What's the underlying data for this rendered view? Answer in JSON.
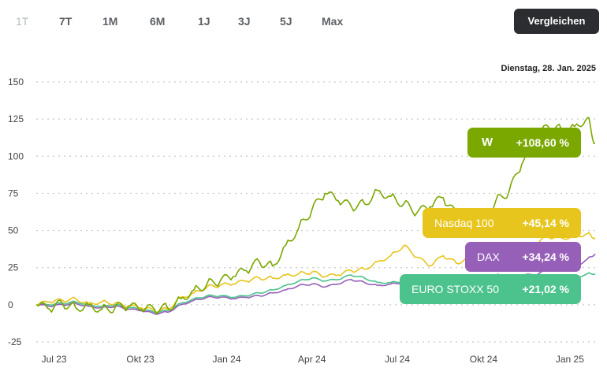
{
  "range_tabs": [
    "1T",
    "7T",
    "1M",
    "6M",
    "1J",
    "3J",
    "5J",
    "Max"
  ],
  "active_range": "1T",
  "compare_button": "Vergleichen",
  "date_label": "Dienstag, 28. Jan. 2025",
  "colors": {
    "main": "#7aa700",
    "nasdaq": "#e7c51c",
    "dax": "#9660b8",
    "stoxx": "#4cc28c",
    "grid": "#c8c8c8",
    "active_tab": "#b7bcc1"
  },
  "legend": [
    {
      "key": "main",
      "name": "W",
      "icon": "stock-logo-icon",
      "value": "+108,60 %"
    },
    {
      "key": "nasdaq",
      "name": "Nasdaq 100",
      "value": "+45,14 %"
    },
    {
      "key": "dax",
      "name": "DAX",
      "value": "+34,24 %"
    },
    {
      "key": "stoxx",
      "name": "EURO STOXX 50",
      "value": "+21,02 %"
    }
  ],
  "chart_data": {
    "type": "line",
    "x_tick_labels": [
      "Jul 23",
      "Okt 23",
      "Jan 24",
      "Apr 24",
      "Jul 24",
      "Okt 24",
      "Jan 25"
    ],
    "y_ticks": [
      150,
      125,
      100,
      75,
      50,
      25,
      0,
      -25
    ],
    "ylim": [
      -25,
      150
    ],
    "xlim": [
      "2023-06-12",
      "2025-01-28"
    ],
    "grid": true,
    "series": [
      {
        "key": "main",
        "name": "W",
        "values": [
          [
            "2023-06-12",
            0
          ],
          [
            "2023-06-26",
            -3
          ],
          [
            "2023-07-10",
            1
          ],
          [
            "2023-07-24",
            -2
          ],
          [
            "2023-08-07",
            0
          ],
          [
            "2023-08-21",
            -3
          ],
          [
            "2023-09-04",
            -2
          ],
          [
            "2023-09-18",
            -1
          ],
          [
            "2023-10-02",
            -3
          ],
          [
            "2023-10-16",
            -3
          ],
          [
            "2023-10-30",
            -2
          ],
          [
            "2023-11-13",
            4
          ],
          [
            "2023-11-27",
            10
          ],
          [
            "2023-12-11",
            14
          ],
          [
            "2023-12-25",
            16
          ],
          [
            "2024-01-08",
            19
          ],
          [
            "2024-01-22",
            23
          ],
          [
            "2024-02-05",
            29
          ],
          [
            "2024-02-19",
            26
          ],
          [
            "2024-03-04",
            40
          ],
          [
            "2024-03-18",
            52
          ],
          [
            "2024-04-01",
            64
          ],
          [
            "2024-04-15",
            75
          ],
          [
            "2024-04-29",
            70
          ],
          [
            "2024-05-13",
            66
          ],
          [
            "2024-05-27",
            68
          ],
          [
            "2024-06-10",
            77
          ],
          [
            "2024-06-24",
            73
          ],
          [
            "2024-07-08",
            68
          ],
          [
            "2024-07-22",
            62
          ],
          [
            "2024-08-05",
            66
          ],
          [
            "2024-08-19",
            72
          ],
          [
            "2024-09-02",
            60
          ],
          [
            "2024-09-16",
            55
          ],
          [
            "2024-09-30",
            53
          ],
          [
            "2024-10-14",
            70
          ],
          [
            "2024-10-28",
            76
          ],
          [
            "2024-11-11",
            95
          ],
          [
            "2024-11-25",
            112
          ],
          [
            "2024-12-09",
            120
          ],
          [
            "2024-12-23",
            118
          ],
          [
            "2025-01-06",
            120
          ],
          [
            "2025-01-20",
            126
          ],
          [
            "2025-01-28",
            108.6
          ]
        ]
      },
      {
        "key": "nasdaq",
        "name": "Nasdaq 100",
        "values": [
          [
            "2023-06-12",
            0
          ],
          [
            "2023-06-26",
            2
          ],
          [
            "2023-07-10",
            3
          ],
          [
            "2023-07-24",
            4
          ],
          [
            "2023-08-07",
            1
          ],
          [
            "2023-08-21",
            2
          ],
          [
            "2023-09-04",
            1
          ],
          [
            "2023-09-18",
            -1
          ],
          [
            "2023-10-02",
            -2
          ],
          [
            "2023-10-16",
            -4
          ],
          [
            "2023-10-30",
            -3
          ],
          [
            "2023-11-13",
            5
          ],
          [
            "2023-11-27",
            8
          ],
          [
            "2023-12-11",
            12
          ],
          [
            "2023-12-25",
            13
          ],
          [
            "2024-01-08",
            14
          ],
          [
            "2024-01-22",
            16
          ],
          [
            "2024-02-05",
            18
          ],
          [
            "2024-02-19",
            18
          ],
          [
            "2024-03-04",
            20
          ],
          [
            "2024-03-18",
            21
          ],
          [
            "2024-04-01",
            22
          ],
          [
            "2024-04-15",
            19
          ],
          [
            "2024-04-29",
            20
          ],
          [
            "2024-05-13",
            23
          ],
          [
            "2024-05-27",
            24
          ],
          [
            "2024-06-10",
            29
          ],
          [
            "2024-06-24",
            33
          ],
          [
            "2024-07-08",
            40
          ],
          [
            "2024-07-22",
            32
          ],
          [
            "2024-08-05",
            26
          ],
          [
            "2024-08-19",
            33
          ],
          [
            "2024-09-02",
            28
          ],
          [
            "2024-09-16",
            32
          ],
          [
            "2024-09-30",
            34
          ],
          [
            "2024-10-14",
            36
          ],
          [
            "2024-10-28",
            34
          ],
          [
            "2024-11-11",
            40
          ],
          [
            "2024-11-25",
            41
          ],
          [
            "2024-12-09",
            46
          ],
          [
            "2024-12-23",
            45
          ],
          [
            "2025-01-06",
            46
          ],
          [
            "2025-01-20",
            48
          ],
          [
            "2025-01-28",
            45.14
          ]
        ]
      },
      {
        "key": "dax",
        "name": "DAX",
        "values": [
          [
            "2023-06-12",
            0
          ],
          [
            "2023-06-26",
            -1
          ],
          [
            "2023-07-10",
            0
          ],
          [
            "2023-07-24",
            1
          ],
          [
            "2023-08-07",
            -1
          ],
          [
            "2023-08-21",
            -2
          ],
          [
            "2023-09-04",
            -1
          ],
          [
            "2023-09-18",
            -3
          ],
          [
            "2023-10-02",
            -4
          ],
          [
            "2023-10-16",
            -6
          ],
          [
            "2023-10-30",
            -5
          ],
          [
            "2023-11-13",
            0
          ],
          [
            "2023-11-27",
            3
          ],
          [
            "2023-12-11",
            5
          ],
          [
            "2023-12-25",
            5
          ],
          [
            "2024-01-08",
            4
          ],
          [
            "2024-01-22",
            5
          ],
          [
            "2024-02-05",
            6
          ],
          [
            "2024-02-19",
            8
          ],
          [
            "2024-03-04",
            10
          ],
          [
            "2024-03-18",
            13
          ],
          [
            "2024-04-01",
            14
          ],
          [
            "2024-04-15",
            12
          ],
          [
            "2024-04-29",
            14
          ],
          [
            "2024-05-13",
            17
          ],
          [
            "2024-05-27",
            15
          ],
          [
            "2024-06-10",
            13
          ],
          [
            "2024-06-24",
            14
          ],
          [
            "2024-07-08",
            15
          ],
          [
            "2024-07-22",
            14
          ],
          [
            "2024-08-05",
            10
          ],
          [
            "2024-08-19",
            15
          ],
          [
            "2024-09-02",
            16
          ],
          [
            "2024-09-16",
            17
          ],
          [
            "2024-09-30",
            19
          ],
          [
            "2024-10-14",
            20
          ],
          [
            "2024-10-28",
            19
          ],
          [
            "2024-11-11",
            20
          ],
          [
            "2024-11-25",
            20
          ],
          [
            "2024-12-09",
            24
          ],
          [
            "2024-12-23",
            24
          ],
          [
            "2025-01-06",
            25
          ],
          [
            "2025-01-20",
            31
          ],
          [
            "2025-01-28",
            34.24
          ]
        ]
      },
      {
        "key": "stoxx",
        "name": "EURO STOXX 50",
        "values": [
          [
            "2023-06-12",
            0
          ],
          [
            "2023-06-26",
            0
          ],
          [
            "2023-07-10",
            1
          ],
          [
            "2023-07-24",
            2
          ],
          [
            "2023-08-07",
            0
          ],
          [
            "2023-08-21",
            -1
          ],
          [
            "2023-09-04",
            0
          ],
          [
            "2023-09-18",
            -2
          ],
          [
            "2023-10-02",
            -3
          ],
          [
            "2023-10-16",
            -5
          ],
          [
            "2023-10-30",
            -4
          ],
          [
            "2023-11-13",
            1
          ],
          [
            "2023-11-27",
            4
          ],
          [
            "2023-12-11",
            6
          ],
          [
            "2023-12-25",
            6
          ],
          [
            "2024-01-08",
            5
          ],
          [
            "2024-01-22",
            6
          ],
          [
            "2024-02-05",
            8
          ],
          [
            "2024-02-19",
            10
          ],
          [
            "2024-03-04",
            13
          ],
          [
            "2024-03-18",
            16
          ],
          [
            "2024-04-01",
            18
          ],
          [
            "2024-04-15",
            16
          ],
          [
            "2024-04-29",
            17
          ],
          [
            "2024-05-13",
            20
          ],
          [
            "2024-05-27",
            18
          ],
          [
            "2024-06-10",
            15
          ],
          [
            "2024-06-24",
            15
          ],
          [
            "2024-07-08",
            16
          ],
          [
            "2024-07-22",
            14
          ],
          [
            "2024-08-05",
            11
          ],
          [
            "2024-08-19",
            15
          ],
          [
            "2024-09-02",
            16
          ],
          [
            "2024-09-16",
            16
          ],
          [
            "2024-09-30",
            17
          ],
          [
            "2024-10-14",
            17
          ],
          [
            "2024-10-28",
            15
          ],
          [
            "2024-11-11",
            14
          ],
          [
            "2024-11-25",
            14
          ],
          [
            "2024-12-09",
            17
          ],
          [
            "2024-12-23",
            16
          ],
          [
            "2025-01-06",
            18
          ],
          [
            "2025-01-20",
            21
          ],
          [
            "2025-01-28",
            21.02
          ]
        ]
      }
    ]
  }
}
